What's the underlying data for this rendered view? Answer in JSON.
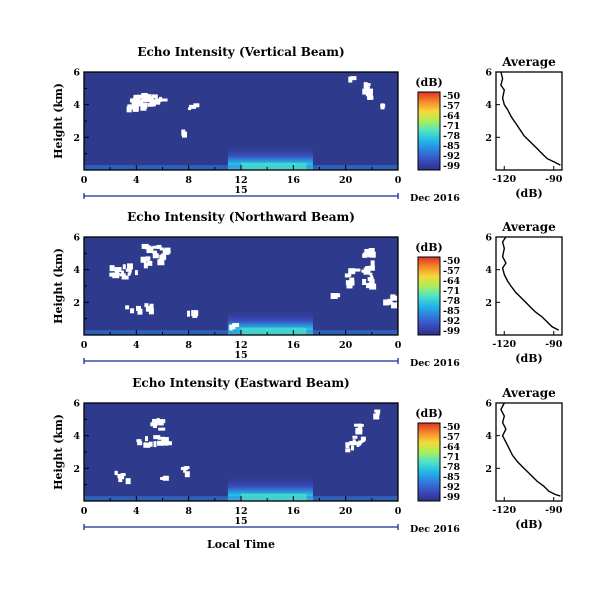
{
  "chart_data": [
    {
      "type": "heatmap",
      "title": "Echo Intensity (Vertical Beam)",
      "ylabel": "Height (km)",
      "x_ticks": [
        "0",
        "4",
        "8",
        "12",
        "16",
        "20",
        "0"
      ],
      "y_ticks": [
        "6",
        "4",
        "2"
      ],
      "date_marker": "15",
      "date_label": "Dec 2016",
      "colorbar_unit": "(dB)",
      "colorbar_ticks": [
        "-50",
        "-57",
        "-64",
        "-71",
        "-78",
        "-85",
        "-92",
        "-99"
      ],
      "profile": {
        "title": "Average",
        "x_ticks": [
          "-120",
          "-90"
        ],
        "xlabel": "(dB)",
        "y_ticks": [
          "6",
          "4",
          "2"
        ],
        "xlim": [
          -125,
          -85
        ],
        "ylim": [
          0,
          6
        ],
        "points": [
          [
            -122,
            6.0
          ],
          [
            -121,
            5.6
          ],
          [
            -122,
            5.2
          ],
          [
            -120,
            4.9
          ],
          [
            -121,
            4.4
          ],
          [
            -120,
            4.0
          ],
          [
            -118,
            3.7
          ],
          [
            -116,
            3.3
          ],
          [
            -114,
            3.0
          ],
          [
            -112,
            2.7
          ],
          [
            -110,
            2.4
          ],
          [
            -108,
            2.1
          ],
          [
            -106,
            1.9
          ],
          [
            -103,
            1.6
          ],
          [
            -100,
            1.3
          ],
          [
            -97,
            1.0
          ],
          [
            -94,
            0.7
          ],
          [
            -90,
            0.5
          ],
          [
            -86,
            0.3
          ]
        ]
      }
    },
    {
      "type": "heatmap",
      "title": "Echo Intensity (Northward Beam)",
      "ylabel": "Height (km)",
      "x_ticks": [
        "0",
        "4",
        "8",
        "12",
        "16",
        "20",
        "0"
      ],
      "y_ticks": [
        "6",
        "4",
        "2"
      ],
      "date_marker": "15",
      "date_label": "Dec 2016",
      "colorbar_unit": "(dB)",
      "colorbar_ticks": [
        "-50",
        "-57",
        "-64",
        "-71",
        "-78",
        "-85",
        "-92",
        "-99"
      ],
      "profile": {
        "title": "Average",
        "x_ticks": [
          "-120",
          "-90"
        ],
        "xlabel": "(dB)",
        "y_ticks": [
          "6",
          "4",
          "2"
        ],
        "xlim": [
          -125,
          -85
        ],
        "ylim": [
          0,
          6
        ],
        "points": [
          [
            -119,
            6.0
          ],
          [
            -121,
            5.7
          ],
          [
            -120,
            5.3
          ],
          [
            -121,
            4.8
          ],
          [
            -119,
            4.4
          ],
          [
            -121,
            4.1
          ],
          [
            -120,
            3.7
          ],
          [
            -118,
            3.3
          ],
          [
            -116,
            3.0
          ],
          [
            -113,
            2.6
          ],
          [
            -110,
            2.3
          ],
          [
            -107,
            2.0
          ],
          [
            -104,
            1.7
          ],
          [
            -101,
            1.4
          ],
          [
            -97,
            1.1
          ],
          [
            -94,
            0.8
          ],
          [
            -91,
            0.5
          ],
          [
            -87,
            0.3
          ]
        ]
      }
    },
    {
      "type": "heatmap",
      "title": "Echo Intensity (Eastward Beam)",
      "ylabel": "Height (km)",
      "x_ticks": [
        "0",
        "4",
        "8",
        "12",
        "16",
        "20",
        "0"
      ],
      "y_ticks": [
        "6",
        "4",
        "2"
      ],
      "date_marker": "15",
      "date_label": "Dec 2016",
      "colorbar_unit": "(dB)",
      "colorbar_ticks": [
        "-50",
        "-57",
        "-64",
        "-71",
        "-78",
        "-85",
        "-92",
        "-99"
      ],
      "profile": {
        "title": "Average",
        "x_ticks": [
          "-120",
          "-90"
        ],
        "xlabel": "(dB)",
        "y_ticks": [
          "6",
          "4",
          "2"
        ],
        "xlim": [
          -125,
          -85
        ],
        "ylim": [
          0,
          6
        ],
        "points": [
          [
            -120,
            6.0
          ],
          [
            -122,
            5.6
          ],
          [
            -120,
            5.2
          ],
          [
            -121,
            4.8
          ],
          [
            -119,
            4.4
          ],
          [
            -121,
            4.0
          ],
          [
            -119,
            3.6
          ],
          [
            -117,
            3.2
          ],
          [
            -115,
            2.8
          ],
          [
            -112,
            2.4
          ],
          [
            -109,
            2.1
          ],
          [
            -106,
            1.8
          ],
          [
            -103,
            1.5
          ],
          [
            -100,
            1.2
          ],
          [
            -96,
            0.9
          ],
          [
            -93,
            0.6
          ],
          [
            -89,
            0.4
          ],
          [
            -86,
            0.3
          ]
        ]
      }
    }
  ],
  "xlabel": "Local Time",
  "colors": {
    "background_echo": "#2e3a8c",
    "colorbar": [
      "#2e2f86",
      "#3a4dbf",
      "#2f7fe0",
      "#22b8e8",
      "#4fe3c8",
      "#a8ef5a",
      "#f5d93a",
      "#f58a2a",
      "#e0302a"
    ]
  }
}
